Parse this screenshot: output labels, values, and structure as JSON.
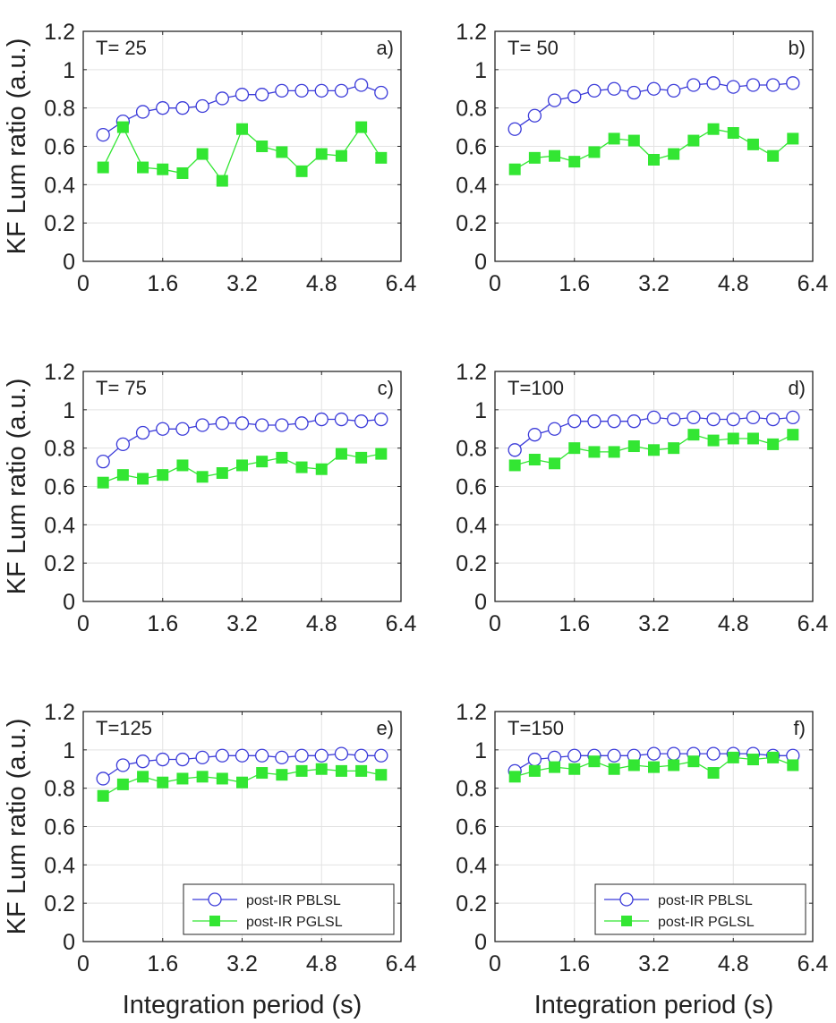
{
  "chart_data": [
    {
      "type": "line",
      "title": "T= 25",
      "panel_label": "a)",
      "xlabel": "",
      "ylabel": "KF Lum ratio (a.u.)",
      "xlim": [
        0,
        6.4
      ],
      "ylim": [
        0,
        1.2
      ],
      "xticks": [
        "0",
        "1.6",
        "3.2",
        "4.8",
        "6.4"
      ],
      "yticks": [
        "0",
        "0.2",
        "0.4",
        "0.6",
        "0.8",
        "1",
        "1.2"
      ],
      "grid": true,
      "x": [
        0.4,
        0.8,
        1.2,
        1.6,
        2.0,
        2.4,
        2.8,
        3.2,
        3.6,
        4.0,
        4.4,
        4.8,
        5.2,
        5.6,
        6.0
      ],
      "series": [
        {
          "name": "post-IR PBLSL",
          "color": "#3b3bd9",
          "marker": "circle-open",
          "values": [
            0.66,
            0.73,
            0.78,
            0.8,
            0.8,
            0.81,
            0.85,
            0.87,
            0.87,
            0.89,
            0.89,
            0.89,
            0.89,
            0.92,
            0.88
          ]
        },
        {
          "name": "post-IR PGLSL",
          "color": "#33e633",
          "marker": "square-filled",
          "values": [
            0.49,
            0.7,
            0.49,
            0.48,
            0.46,
            0.56,
            0.42,
            0.69,
            0.6,
            0.57,
            0.47,
            0.56,
            0.55,
            0.7,
            0.54
          ]
        }
      ]
    },
    {
      "type": "line",
      "title": "T= 50",
      "panel_label": "b)",
      "xlabel": "",
      "ylabel": "",
      "xlim": [
        0,
        6.4
      ],
      "ylim": [
        0,
        1.2
      ],
      "xticks": [
        "0",
        "1.6",
        "3.2",
        "4.8",
        "6.4"
      ],
      "yticks": [
        "0",
        "0.2",
        "0.4",
        "0.6",
        "0.8",
        "1",
        "1.2"
      ],
      "grid": true,
      "x": [
        0.4,
        0.8,
        1.2,
        1.6,
        2.0,
        2.4,
        2.8,
        3.2,
        3.6,
        4.0,
        4.4,
        4.8,
        5.2,
        5.6,
        6.0
      ],
      "series": [
        {
          "name": "post-IR PBLSL",
          "color": "#3b3bd9",
          "marker": "circle-open",
          "values": [
            0.69,
            0.76,
            0.84,
            0.86,
            0.89,
            0.9,
            0.88,
            0.9,
            0.89,
            0.92,
            0.93,
            0.91,
            0.92,
            0.92,
            0.93
          ]
        },
        {
          "name": "post-IR PGLSL",
          "color": "#33e633",
          "marker": "square-filled",
          "values": [
            0.48,
            0.54,
            0.55,
            0.52,
            0.57,
            0.64,
            0.63,
            0.53,
            0.56,
            0.63,
            0.69,
            0.67,
            0.61,
            0.55,
            0.64
          ]
        }
      ]
    },
    {
      "type": "line",
      "title": "T= 75",
      "panel_label": "c)",
      "xlabel": "",
      "ylabel": "KF Lum ratio (a.u.)",
      "xlim": [
        0,
        6.4
      ],
      "ylim": [
        0,
        1.2
      ],
      "xticks": [
        "0",
        "1.6",
        "3.2",
        "4.8",
        "6.4"
      ],
      "yticks": [
        "0",
        "0.2",
        "0.4",
        "0.6",
        "0.8",
        "1",
        "1.2"
      ],
      "grid": true,
      "x": [
        0.4,
        0.8,
        1.2,
        1.6,
        2.0,
        2.4,
        2.8,
        3.2,
        3.6,
        4.0,
        4.4,
        4.8,
        5.2,
        5.6,
        6.0
      ],
      "series": [
        {
          "name": "post-IR PBLSL",
          "color": "#3b3bd9",
          "marker": "circle-open",
          "values": [
            0.73,
            0.82,
            0.88,
            0.9,
            0.9,
            0.92,
            0.93,
            0.93,
            0.92,
            0.92,
            0.93,
            0.95,
            0.95,
            0.94,
            0.95
          ]
        },
        {
          "name": "post-IR PGLSL",
          "color": "#33e633",
          "marker": "square-filled",
          "values": [
            0.62,
            0.66,
            0.64,
            0.66,
            0.71,
            0.65,
            0.67,
            0.71,
            0.73,
            0.75,
            0.7,
            0.69,
            0.77,
            0.75,
            0.77
          ]
        }
      ]
    },
    {
      "type": "line",
      "title": "T=100",
      "panel_label": "d)",
      "xlabel": "",
      "ylabel": "",
      "xlim": [
        0,
        6.4
      ],
      "ylim": [
        0,
        1.2
      ],
      "xticks": [
        "0",
        "1.6",
        "3.2",
        "4.8",
        "6.4"
      ],
      "yticks": [
        "0",
        "0.2",
        "0.4",
        "0.6",
        "0.8",
        "1",
        "1.2"
      ],
      "grid": true,
      "x": [
        0.4,
        0.8,
        1.2,
        1.6,
        2.0,
        2.4,
        2.8,
        3.2,
        3.6,
        4.0,
        4.4,
        4.8,
        5.2,
        5.6,
        6.0
      ],
      "series": [
        {
          "name": "post-IR PBLSL",
          "color": "#3b3bd9",
          "marker": "circle-open",
          "values": [
            0.79,
            0.87,
            0.9,
            0.94,
            0.94,
            0.94,
            0.94,
            0.96,
            0.95,
            0.96,
            0.95,
            0.95,
            0.96,
            0.95,
            0.96
          ]
        },
        {
          "name": "post-IR PGLSL",
          "color": "#33e633",
          "marker": "square-filled",
          "values": [
            0.71,
            0.74,
            0.72,
            0.8,
            0.78,
            0.78,
            0.81,
            0.79,
            0.8,
            0.87,
            0.84,
            0.85,
            0.85,
            0.82,
            0.87
          ]
        }
      ]
    },
    {
      "type": "line",
      "title": "T=125",
      "panel_label": "e)",
      "xlabel": "Integration period (s)",
      "ylabel": "KF Lum ratio (a.u.)",
      "xlim": [
        0,
        6.4
      ],
      "ylim": [
        0,
        1.2
      ],
      "xticks": [
        "0",
        "1.6",
        "3.2",
        "4.8",
        "6.4"
      ],
      "yticks": [
        "0",
        "0.2",
        "0.4",
        "0.6",
        "0.8",
        "1",
        "1.2"
      ],
      "grid": true,
      "legend": "bottom-right",
      "x": [
        0.4,
        0.8,
        1.2,
        1.6,
        2.0,
        2.4,
        2.8,
        3.2,
        3.6,
        4.0,
        4.4,
        4.8,
        5.2,
        5.6,
        6.0
      ],
      "series": [
        {
          "name": "post-IR PBLSL",
          "color": "#3b3bd9",
          "marker": "circle-open",
          "values": [
            0.85,
            0.92,
            0.94,
            0.95,
            0.95,
            0.96,
            0.97,
            0.97,
            0.97,
            0.96,
            0.97,
            0.97,
            0.98,
            0.97,
            0.97
          ]
        },
        {
          "name": "post-IR PGLSL",
          "color": "#33e633",
          "marker": "square-filled",
          "values": [
            0.76,
            0.82,
            0.86,
            0.83,
            0.85,
            0.86,
            0.85,
            0.83,
            0.88,
            0.87,
            0.89,
            0.9,
            0.89,
            0.89,
            0.87
          ]
        }
      ]
    },
    {
      "type": "line",
      "title": "T=150",
      "panel_label": "f)",
      "xlabel": "Integration period (s)",
      "ylabel": "",
      "xlim": [
        0,
        6.4
      ],
      "ylim": [
        0,
        1.2
      ],
      "xticks": [
        "0",
        "1.6",
        "3.2",
        "4.8",
        "6.4"
      ],
      "yticks": [
        "0",
        "0.2",
        "0.4",
        "0.6",
        "0.8",
        "1",
        "1.2"
      ],
      "grid": true,
      "legend": "bottom-right",
      "x": [
        0.4,
        0.8,
        1.2,
        1.6,
        2.0,
        2.4,
        2.8,
        3.2,
        3.6,
        4.0,
        4.4,
        4.8,
        5.2,
        5.6,
        6.0
      ],
      "series": [
        {
          "name": "post-IR PBLSL",
          "color": "#3b3bd9",
          "marker": "circle-open",
          "values": [
            0.89,
            0.95,
            0.96,
            0.97,
            0.97,
            0.97,
            0.97,
            0.98,
            0.98,
            0.98,
            0.98,
            0.98,
            0.98,
            0.97,
            0.97
          ]
        },
        {
          "name": "post-IR PGLSL",
          "color": "#33e633",
          "marker": "square-filled",
          "values": [
            0.86,
            0.89,
            0.91,
            0.9,
            0.94,
            0.9,
            0.92,
            0.91,
            0.92,
            0.94,
            0.88,
            0.96,
            0.95,
            0.96,
            0.92
          ]
        }
      ]
    }
  ]
}
